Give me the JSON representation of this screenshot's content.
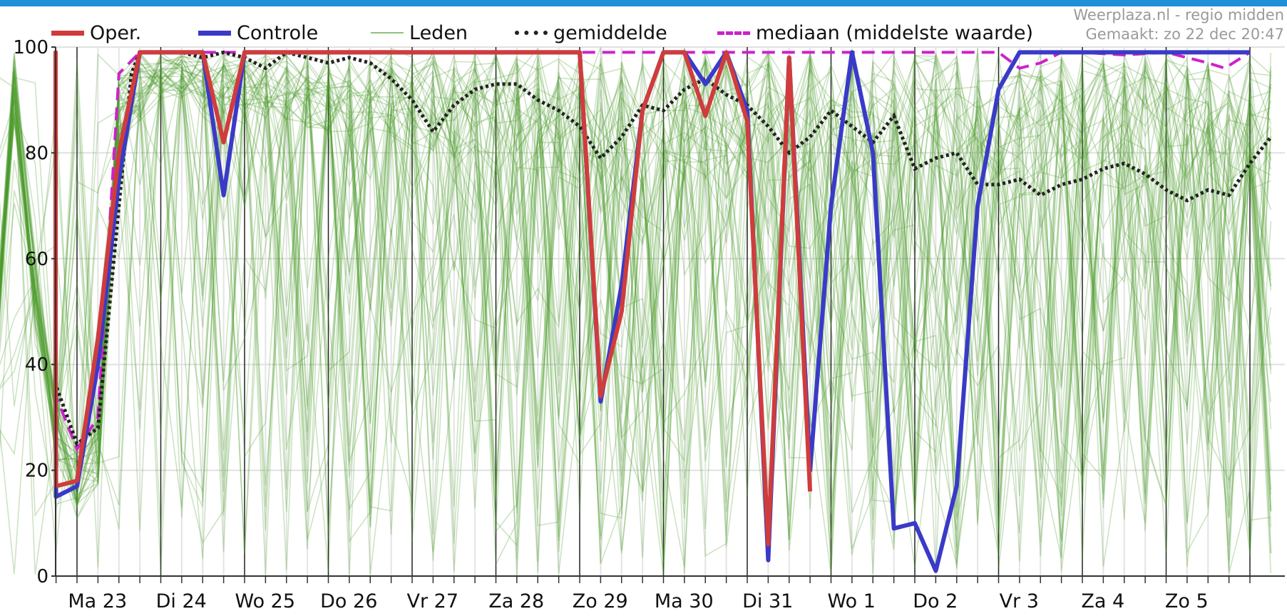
{
  "header": {
    "source": "Weerplaza.nl - regio midden",
    "made": "Gemaakt: zo 22 dec 20:47"
  },
  "colors": {
    "accent_bar": "#1e90d8",
    "oper": "#d03c3c",
    "controle": "#3a3ac8",
    "leden": "#4c9a2a",
    "gemiddelde": "#222222",
    "mediaan": "#cc22cc"
  },
  "legend": [
    {
      "key": "oper",
      "label": "Oper."
    },
    {
      "key": "controle",
      "label": "Controle"
    },
    {
      "key": "leden",
      "label": "Leden"
    },
    {
      "key": "gemiddelde",
      "label": "gemiddelde"
    },
    {
      "key": "mediaan",
      "label": "mediaan (middelste waarde)"
    }
  ],
  "chart_data": {
    "type": "line",
    "ylim": [
      0,
      100
    ],
    "yticks": [
      0,
      20,
      40,
      60,
      80,
      100
    ],
    "grid": true,
    "legend_position": "top",
    "x_unit": "6-hour steps from Ma 23 00:00 (day 23 = step 0)",
    "day_labels": [
      {
        "label": "Ma 23",
        "day_index": 0
      },
      {
        "label": "Di 24",
        "day_index": 1
      },
      {
        "label": "Wo 25",
        "day_index": 2
      },
      {
        "label": "Do 26",
        "day_index": 3
      },
      {
        "label": "Vr 27",
        "day_index": 4
      },
      {
        "label": "Za 28",
        "day_index": 5
      },
      {
        "label": "Zo 29",
        "day_index": 6
      },
      {
        "label": "Ma 30",
        "day_index": 7
      },
      {
        "label": "Di 31",
        "day_index": 8
      },
      {
        "label": "Wo 1",
        "day_index": 9
      },
      {
        "label": "Do 2",
        "day_index": 10
      },
      {
        "label": "Vr 3",
        "day_index": 11
      },
      {
        "label": "Za 4",
        "day_index": 12
      },
      {
        "label": "Zo 5",
        "day_index": 13
      }
    ],
    "series": [
      {
        "key": "leden",
        "name": "Leden",
        "kind": "ensemble",
        "members": 50
      },
      {
        "key": "mediaan",
        "name": "mediaan (middelste waarde)",
        "points": [
          [
            -1,
            42
          ],
          [
            -0.75,
            99
          ],
          [
            -0.5,
            60
          ],
          [
            -0.25,
            34
          ],
          [
            0,
            24
          ],
          [
            0.25,
            30
          ],
          [
            0.5,
            95
          ],
          [
            0.75,
            99
          ],
          [
            1,
            99
          ],
          [
            2,
            99
          ],
          [
            3,
            99
          ],
          [
            4,
            99
          ],
          [
            5,
            99
          ],
          [
            6,
            99
          ],
          [
            6.5,
            99
          ],
          [
            7,
            99
          ],
          [
            8,
            99
          ],
          [
            9,
            99
          ],
          [
            10,
            99
          ],
          [
            11,
            99
          ],
          [
            11.25,
            96
          ],
          [
            11.5,
            97
          ],
          [
            11.75,
            99
          ],
          [
            12,
            99
          ],
          [
            12.5,
            98.5
          ],
          [
            13,
            99
          ],
          [
            13.5,
            97
          ],
          [
            13.7,
            96
          ],
          [
            14,
            99
          ]
        ]
      },
      {
        "key": "gemiddelde",
        "name": "gemiddelde",
        "points": [
          [
            -1,
            40
          ],
          [
            -0.75,
            89
          ],
          [
            -0.5,
            60
          ],
          [
            -0.25,
            36
          ],
          [
            0,
            25
          ],
          [
            0.25,
            28
          ],
          [
            0.5,
            70
          ],
          [
            0.65,
            95
          ],
          [
            0.75,
            99
          ],
          [
            1,
            99
          ],
          [
            1.25,
            99
          ],
          [
            1.5,
            98
          ],
          [
            1.75,
            99
          ],
          [
            2,
            98
          ],
          [
            2.25,
            96
          ],
          [
            2.5,
            99
          ],
          [
            2.75,
            98
          ],
          [
            3,
            97
          ],
          [
            3.25,
            98
          ],
          [
            3.5,
            97
          ],
          [
            3.75,
            94
          ],
          [
            4,
            90
          ],
          [
            4.25,
            84
          ],
          [
            4.5,
            89
          ],
          [
            4.75,
            92
          ],
          [
            5,
            93
          ],
          [
            5.25,
            93
          ],
          [
            5.5,
            90
          ],
          [
            5.75,
            88
          ],
          [
            6,
            85
          ],
          [
            6.25,
            79
          ],
          [
            6.5,
            83
          ],
          [
            6.75,
            89
          ],
          [
            7,
            88
          ],
          [
            7.25,
            92
          ],
          [
            7.5,
            94
          ],
          [
            7.75,
            91
          ],
          [
            8,
            89
          ],
          [
            8.25,
            85
          ],
          [
            8.5,
            80
          ],
          [
            8.75,
            83
          ],
          [
            9,
            88
          ],
          [
            9.25,
            85
          ],
          [
            9.5,
            82
          ],
          [
            9.75,
            87
          ],
          [
            10,
            77
          ],
          [
            10.25,
            79
          ],
          [
            10.5,
            80
          ],
          [
            10.75,
            74
          ],
          [
            11,
            74
          ],
          [
            11.25,
            75
          ],
          [
            11.5,
            72
          ],
          [
            11.75,
            74
          ],
          [
            12,
            75
          ],
          [
            12.25,
            77
          ],
          [
            12.5,
            78
          ],
          [
            12.75,
            76
          ],
          [
            13,
            73
          ],
          [
            13.25,
            71
          ],
          [
            13.5,
            73
          ],
          [
            13.75,
            72
          ],
          [
            14,
            78
          ],
          [
            14.25,
            83
          ]
        ]
      },
      {
        "key": "controle",
        "name": "Controle",
        "points": [
          [
            -1,
            33
          ],
          [
            -0.75,
            99
          ],
          [
            -0.5,
            35
          ],
          [
            -0.25,
            15
          ],
          [
            0,
            17
          ],
          [
            0.25,
            40
          ],
          [
            0.5,
            75
          ],
          [
            0.75,
            99
          ],
          [
            1,
            99
          ],
          [
            1.25,
            99
          ],
          [
            1.5,
            99
          ],
          [
            1.75,
            72
          ],
          [
            2,
            99
          ],
          [
            2.25,
            99
          ],
          [
            3,
            99
          ],
          [
            4,
            99
          ],
          [
            5,
            99
          ],
          [
            6,
            99
          ],
          [
            6.25,
            33
          ],
          [
            6.5,
            55
          ],
          [
            6.75,
            88
          ],
          [
            7,
            99
          ],
          [
            7.25,
            99
          ],
          [
            7.5,
            93
          ],
          [
            7.75,
            99
          ],
          [
            8,
            88
          ],
          [
            8.25,
            3
          ],
          [
            8.5,
            98
          ],
          [
            8.75,
            20
          ],
          [
            9,
            70
          ],
          [
            9.25,
            99
          ],
          [
            9.5,
            80
          ],
          [
            9.75,
            9
          ],
          [
            10,
            10
          ],
          [
            10.25,
            1
          ],
          [
            10.5,
            17
          ],
          [
            10.75,
            70
          ],
          [
            11,
            92
          ],
          [
            11.25,
            99
          ],
          [
            11.5,
            99
          ],
          [
            12,
            99
          ],
          [
            13,
            99
          ],
          [
            14,
            99
          ]
        ]
      },
      {
        "key": "oper",
        "name": "Oper.",
        "points": [
          [
            -1,
            36
          ],
          [
            -0.75,
            99
          ],
          [
            -0.5,
            30
          ],
          [
            -0.25,
            17
          ],
          [
            0,
            18
          ],
          [
            0.25,
            45
          ],
          [
            0.5,
            80
          ],
          [
            0.75,
            99
          ],
          [
            1,
            99
          ],
          [
            1.25,
            99
          ],
          [
            1.5,
            99
          ],
          [
            1.75,
            82
          ],
          [
            2,
            99
          ],
          [
            2.25,
            99
          ],
          [
            3,
            99
          ],
          [
            4,
            99
          ],
          [
            4.5,
            99
          ],
          [
            5,
            99
          ],
          [
            5.75,
            99
          ],
          [
            6,
            99
          ],
          [
            6.25,
            34
          ],
          [
            6.5,
            50
          ],
          [
            6.75,
            88
          ],
          [
            7,
            99
          ],
          [
            7.25,
            99
          ],
          [
            7.5,
            87
          ],
          [
            7.75,
            99
          ],
          [
            8,
            86
          ],
          [
            8.25,
            6
          ],
          [
            8.5,
            98
          ],
          [
            8.75,
            16
          ]
        ]
      }
    ]
  }
}
